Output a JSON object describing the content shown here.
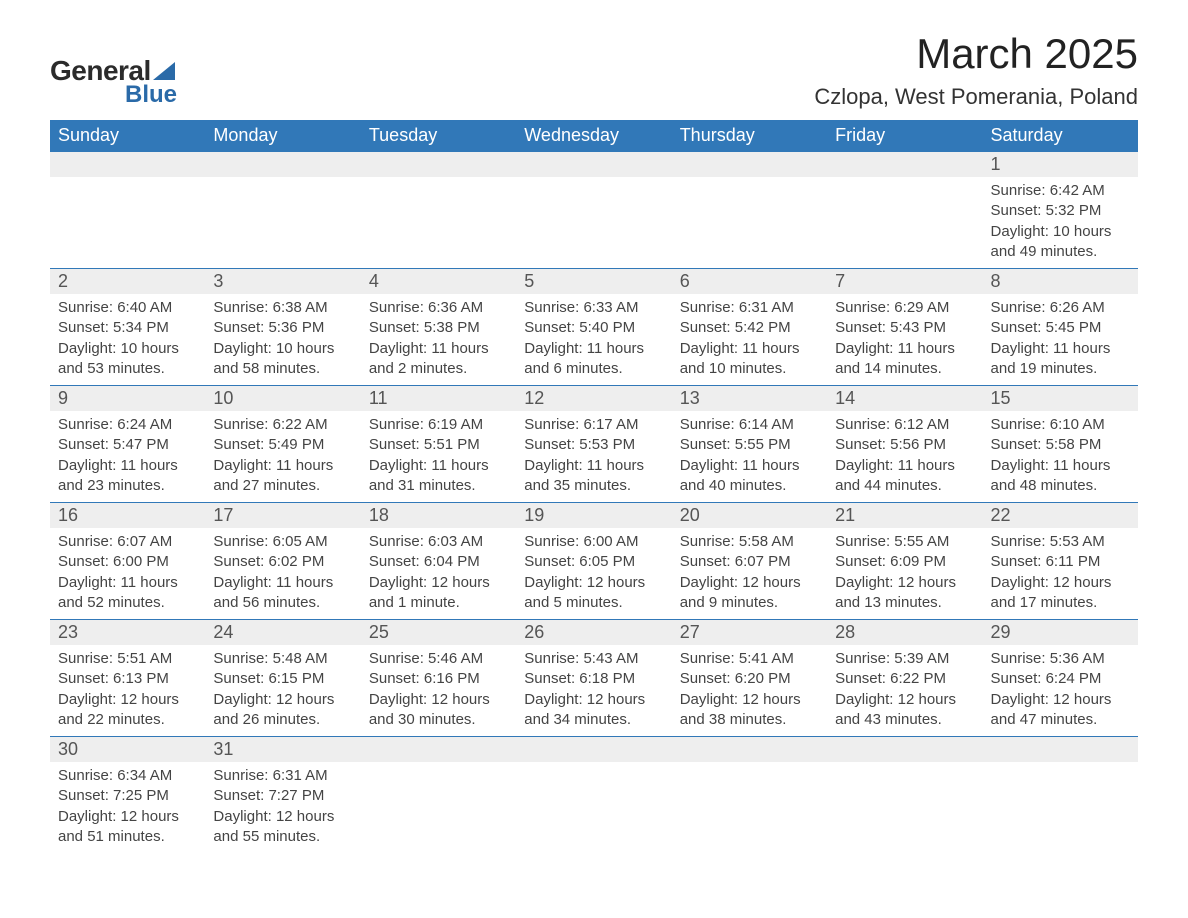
{
  "brand": {
    "word1": "General",
    "word2": "Blue",
    "accent_color": "#2a6aa8"
  },
  "title": "March 2025",
  "location": "Czlopa, West Pomerania, Poland",
  "colors": {
    "header_bg": "#3178b8",
    "header_text": "#ffffff",
    "daynum_bg": "#eeeeee",
    "row_divider": "#3178b8",
    "body_text": "#444444",
    "page_bg": "#ffffff"
  },
  "typography": {
    "title_fontsize": 42,
    "location_fontsize": 22,
    "header_fontsize": 18,
    "daynum_fontsize": 18,
    "cell_fontsize": 15,
    "font_family": "Arial"
  },
  "weekdays": [
    "Sunday",
    "Monday",
    "Tuesday",
    "Wednesday",
    "Thursday",
    "Friday",
    "Saturday"
  ],
  "weeks": [
    [
      null,
      null,
      null,
      null,
      null,
      null,
      {
        "day": "1",
        "sunrise": "Sunrise: 6:42 AM",
        "sunset": "Sunset: 5:32 PM",
        "daylight1": "Daylight: 10 hours",
        "daylight2": "and 49 minutes."
      }
    ],
    [
      {
        "day": "2",
        "sunrise": "Sunrise: 6:40 AM",
        "sunset": "Sunset: 5:34 PM",
        "daylight1": "Daylight: 10 hours",
        "daylight2": "and 53 minutes."
      },
      {
        "day": "3",
        "sunrise": "Sunrise: 6:38 AM",
        "sunset": "Sunset: 5:36 PM",
        "daylight1": "Daylight: 10 hours",
        "daylight2": "and 58 minutes."
      },
      {
        "day": "4",
        "sunrise": "Sunrise: 6:36 AM",
        "sunset": "Sunset: 5:38 PM",
        "daylight1": "Daylight: 11 hours",
        "daylight2": "and 2 minutes."
      },
      {
        "day": "5",
        "sunrise": "Sunrise: 6:33 AM",
        "sunset": "Sunset: 5:40 PM",
        "daylight1": "Daylight: 11 hours",
        "daylight2": "and 6 minutes."
      },
      {
        "day": "6",
        "sunrise": "Sunrise: 6:31 AM",
        "sunset": "Sunset: 5:42 PM",
        "daylight1": "Daylight: 11 hours",
        "daylight2": "and 10 minutes."
      },
      {
        "day": "7",
        "sunrise": "Sunrise: 6:29 AM",
        "sunset": "Sunset: 5:43 PM",
        "daylight1": "Daylight: 11 hours",
        "daylight2": "and 14 minutes."
      },
      {
        "day": "8",
        "sunrise": "Sunrise: 6:26 AM",
        "sunset": "Sunset: 5:45 PM",
        "daylight1": "Daylight: 11 hours",
        "daylight2": "and 19 minutes."
      }
    ],
    [
      {
        "day": "9",
        "sunrise": "Sunrise: 6:24 AM",
        "sunset": "Sunset: 5:47 PM",
        "daylight1": "Daylight: 11 hours",
        "daylight2": "and 23 minutes."
      },
      {
        "day": "10",
        "sunrise": "Sunrise: 6:22 AM",
        "sunset": "Sunset: 5:49 PM",
        "daylight1": "Daylight: 11 hours",
        "daylight2": "and 27 minutes."
      },
      {
        "day": "11",
        "sunrise": "Sunrise: 6:19 AM",
        "sunset": "Sunset: 5:51 PM",
        "daylight1": "Daylight: 11 hours",
        "daylight2": "and 31 minutes."
      },
      {
        "day": "12",
        "sunrise": "Sunrise: 6:17 AM",
        "sunset": "Sunset: 5:53 PM",
        "daylight1": "Daylight: 11 hours",
        "daylight2": "and 35 minutes."
      },
      {
        "day": "13",
        "sunrise": "Sunrise: 6:14 AM",
        "sunset": "Sunset: 5:55 PM",
        "daylight1": "Daylight: 11 hours",
        "daylight2": "and 40 minutes."
      },
      {
        "day": "14",
        "sunrise": "Sunrise: 6:12 AM",
        "sunset": "Sunset: 5:56 PM",
        "daylight1": "Daylight: 11 hours",
        "daylight2": "and 44 minutes."
      },
      {
        "day": "15",
        "sunrise": "Sunrise: 6:10 AM",
        "sunset": "Sunset: 5:58 PM",
        "daylight1": "Daylight: 11 hours",
        "daylight2": "and 48 minutes."
      }
    ],
    [
      {
        "day": "16",
        "sunrise": "Sunrise: 6:07 AM",
        "sunset": "Sunset: 6:00 PM",
        "daylight1": "Daylight: 11 hours",
        "daylight2": "and 52 minutes."
      },
      {
        "day": "17",
        "sunrise": "Sunrise: 6:05 AM",
        "sunset": "Sunset: 6:02 PM",
        "daylight1": "Daylight: 11 hours",
        "daylight2": "and 56 minutes."
      },
      {
        "day": "18",
        "sunrise": "Sunrise: 6:03 AM",
        "sunset": "Sunset: 6:04 PM",
        "daylight1": "Daylight: 12 hours",
        "daylight2": "and 1 minute."
      },
      {
        "day": "19",
        "sunrise": "Sunrise: 6:00 AM",
        "sunset": "Sunset: 6:05 PM",
        "daylight1": "Daylight: 12 hours",
        "daylight2": "and 5 minutes."
      },
      {
        "day": "20",
        "sunrise": "Sunrise: 5:58 AM",
        "sunset": "Sunset: 6:07 PM",
        "daylight1": "Daylight: 12 hours",
        "daylight2": "and 9 minutes."
      },
      {
        "day": "21",
        "sunrise": "Sunrise: 5:55 AM",
        "sunset": "Sunset: 6:09 PM",
        "daylight1": "Daylight: 12 hours",
        "daylight2": "and 13 minutes."
      },
      {
        "day": "22",
        "sunrise": "Sunrise: 5:53 AM",
        "sunset": "Sunset: 6:11 PM",
        "daylight1": "Daylight: 12 hours",
        "daylight2": "and 17 minutes."
      }
    ],
    [
      {
        "day": "23",
        "sunrise": "Sunrise: 5:51 AM",
        "sunset": "Sunset: 6:13 PM",
        "daylight1": "Daylight: 12 hours",
        "daylight2": "and 22 minutes."
      },
      {
        "day": "24",
        "sunrise": "Sunrise: 5:48 AM",
        "sunset": "Sunset: 6:15 PM",
        "daylight1": "Daylight: 12 hours",
        "daylight2": "and 26 minutes."
      },
      {
        "day": "25",
        "sunrise": "Sunrise: 5:46 AM",
        "sunset": "Sunset: 6:16 PM",
        "daylight1": "Daylight: 12 hours",
        "daylight2": "and 30 minutes."
      },
      {
        "day": "26",
        "sunrise": "Sunrise: 5:43 AM",
        "sunset": "Sunset: 6:18 PM",
        "daylight1": "Daylight: 12 hours",
        "daylight2": "and 34 minutes."
      },
      {
        "day": "27",
        "sunrise": "Sunrise: 5:41 AM",
        "sunset": "Sunset: 6:20 PM",
        "daylight1": "Daylight: 12 hours",
        "daylight2": "and 38 minutes."
      },
      {
        "day": "28",
        "sunrise": "Sunrise: 5:39 AM",
        "sunset": "Sunset: 6:22 PM",
        "daylight1": "Daylight: 12 hours",
        "daylight2": "and 43 minutes."
      },
      {
        "day": "29",
        "sunrise": "Sunrise: 5:36 AM",
        "sunset": "Sunset: 6:24 PM",
        "daylight1": "Daylight: 12 hours",
        "daylight2": "and 47 minutes."
      }
    ],
    [
      {
        "day": "30",
        "sunrise": "Sunrise: 6:34 AM",
        "sunset": "Sunset: 7:25 PM",
        "daylight1": "Daylight: 12 hours",
        "daylight2": "and 51 minutes."
      },
      {
        "day": "31",
        "sunrise": "Sunrise: 6:31 AM",
        "sunset": "Sunset: 7:27 PM",
        "daylight1": "Daylight: 12 hours",
        "daylight2": "and 55 minutes."
      },
      null,
      null,
      null,
      null,
      null
    ]
  ]
}
